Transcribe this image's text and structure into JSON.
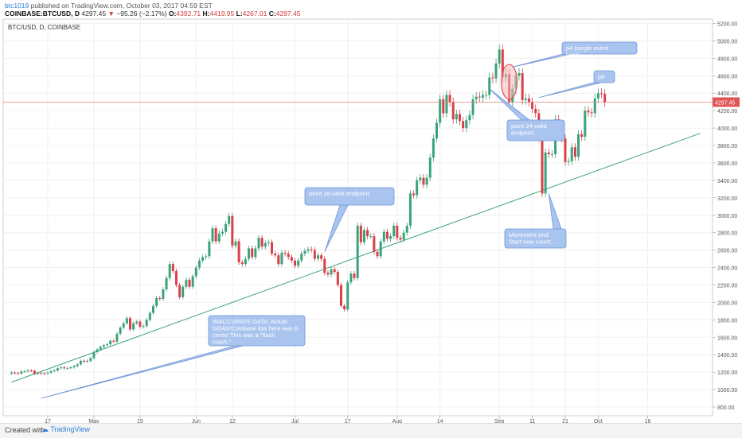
{
  "header": {
    "author": "btc1019",
    "published_text": " published on TradingView.com, October 03, 2017 04:59 EST",
    "symbol": "COINBASE:BTCUSD, D",
    "last": "4297.45",
    "change_arrow": "▼",
    "change": "−95.26 (−2.17%)",
    "o_label": "O:",
    "o_value": "4392.71",
    "h_label": "H:",
    "h_value": "4419.95",
    "l_label": "L:",
    "l_value": "4267.01",
    "c_label": "C:",
    "c_value": "4297.45"
  },
  "chart_title": "BTC/USD, D, COINBASE",
  "footer": {
    "created_with": "Created with",
    "brand": "TradingView"
  },
  "colors": {
    "up": "#3aa37a",
    "down": "#d9404a",
    "trendline": "#3aa37a",
    "callout_fill": "#a9c4ef",
    "callout_stroke": "#6f95d6",
    "callout_text": "#ffffff",
    "price_line": "#e87b7b",
    "price_tag": "#e05656"
  },
  "chart_data": {
    "type": "candlestick",
    "title": "BTC/USD, D, COINBASE",
    "y_ticks": [
      "800.00",
      "1000.00",
      "1200.00",
      "1400.00",
      "1600.00",
      "1800.00",
      "2000.00",
      "2200.00",
      "2400.00",
      "2600.00",
      "2800.00",
      "3000.00",
      "3200.00",
      "3400.00",
      "3600.00",
      "3800.00",
      "4000.00",
      "4200.00",
      "4400.00",
      "4600.00",
      "4800.00",
      "5000.00",
      "5200.00"
    ],
    "y_range": [
      700,
      5250
    ],
    "x_ticks": [
      {
        "label": "17",
        "date": "2017-04-17"
      },
      {
        "label": "May",
        "date": "2017-05-01"
      },
      {
        "label": "15",
        "date": "2017-05-15"
      },
      {
        "label": "Jun",
        "date": "2017-06-01"
      },
      {
        "label": "12",
        "date": "2017-06-12"
      },
      {
        "label": "Jul",
        "date": "2017-07-01"
      },
      {
        "label": "17",
        "date": "2017-07-17"
      },
      {
        "label": "Aug",
        "date": "2017-08-01"
      },
      {
        "label": "14",
        "date": "2017-08-14"
      },
      {
        "label": "Sep",
        "date": "2017-09-01"
      },
      {
        "label": "11",
        "date": "2017-09-11"
      },
      {
        "label": "21",
        "date": "2017-09-21"
      },
      {
        "label": "Oct",
        "date": "2017-10-01"
      },
      {
        "label": "16",
        "date": "2017-10-16"
      }
    ],
    "current_price_label": "4297.45",
    "candles": [
      {
        "d": "2017-04-06",
        "c": 1195
      },
      {
        "d": "2017-04-07",
        "c": 1190
      },
      {
        "d": "2017-04-08",
        "c": 1183
      },
      {
        "d": "2017-04-09",
        "c": 1208
      },
      {
        "d": "2017-04-10",
        "c": 1210
      },
      {
        "d": "2017-04-11",
        "c": 1220
      },
      {
        "d": "2017-04-12",
        "c": 1215
      },
      {
        "d": "2017-04-13",
        "c": 1182
      },
      {
        "d": "2017-04-14",
        "c": 1190
      },
      {
        "d": "2017-04-15",
        "c": 1186
      },
      {
        "d": "2017-04-16",
        "c": 1185
      },
      {
        "d": "2017-04-17",
        "c": 1195
      },
      {
        "d": "2017-04-18",
        "c": 1212
      },
      {
        "d": "2017-04-19",
        "c": 1220
      },
      {
        "d": "2017-04-20",
        "c": 1245
      },
      {
        "d": "2017-04-21",
        "c": 1255
      },
      {
        "d": "2017-04-22",
        "c": 1245
      },
      {
        "d": "2017-04-23",
        "c": 1248
      },
      {
        "d": "2017-04-24",
        "c": 1255
      },
      {
        "d": "2017-04-25",
        "c": 1270
      },
      {
        "d": "2017-04-26",
        "c": 1290
      },
      {
        "d": "2017-04-27",
        "c": 1330
      },
      {
        "d": "2017-04-28",
        "c": 1320
      },
      {
        "d": "2017-04-29",
        "c": 1330
      },
      {
        "d": "2017-04-30",
        "c": 1360
      },
      {
        "d": "2017-05-01",
        "c": 1430
      },
      {
        "d": "2017-05-02",
        "c": 1460
      },
      {
        "d": "2017-05-03",
        "c": 1490
      },
      {
        "d": "2017-05-04",
        "c": 1510
      },
      {
        "d": "2017-05-05",
        "c": 1520
      },
      {
        "d": "2017-05-06",
        "c": 1560
      },
      {
        "d": "2017-05-07",
        "c": 1550
      },
      {
        "d": "2017-05-08",
        "c": 1640
      },
      {
        "d": "2017-05-09",
        "c": 1710
      },
      {
        "d": "2017-05-10",
        "c": 1760
      },
      {
        "d": "2017-05-11",
        "c": 1820
      },
      {
        "d": "2017-05-12",
        "c": 1690
      },
      {
        "d": "2017-05-13",
        "c": 1760
      },
      {
        "d": "2017-05-14",
        "c": 1780
      },
      {
        "d": "2017-05-15",
        "c": 1720
      },
      {
        "d": "2017-05-16",
        "c": 1730
      },
      {
        "d": "2017-05-17",
        "c": 1800
      },
      {
        "d": "2017-05-18",
        "c": 1880
      },
      {
        "d": "2017-05-19",
        "c": 1960
      },
      {
        "d": "2017-05-20",
        "c": 2050
      },
      {
        "d": "2017-05-21",
        "c": 2040
      },
      {
        "d": "2017-05-22",
        "c": 2150
      },
      {
        "d": "2017-05-23",
        "c": 2280
      },
      {
        "d": "2017-05-24",
        "c": 2440
      },
      {
        "d": "2017-05-25",
        "c": 2360
      },
      {
        "d": "2017-05-26",
        "c": 2200
      },
      {
        "d": "2017-05-27",
        "c": 2060
      },
      {
        "d": "2017-05-28",
        "c": 2180
      },
      {
        "d": "2017-05-29",
        "c": 2260
      },
      {
        "d": "2017-05-30",
        "c": 2180
      },
      {
        "d": "2017-05-31",
        "c": 2300
      },
      {
        "d": "2017-06-01",
        "c": 2400
      },
      {
        "d": "2017-06-02",
        "c": 2480
      },
      {
        "d": "2017-06-03",
        "c": 2520
      },
      {
        "d": "2017-06-04",
        "c": 2530
      },
      {
        "d": "2017-06-05",
        "c": 2700
      },
      {
        "d": "2017-06-06",
        "c": 2850
      },
      {
        "d": "2017-06-07",
        "c": 2700
      },
      {
        "d": "2017-06-08",
        "c": 2790
      },
      {
        "d": "2017-06-09",
        "c": 2810
      },
      {
        "d": "2017-06-10",
        "c": 2900
      },
      {
        "d": "2017-06-11",
        "c": 2990
      },
      {
        "d": "2017-06-12",
        "c": 2650
      },
      {
        "d": "2017-06-13",
        "c": 2700
      },
      {
        "d": "2017-06-14",
        "c": 2460
      },
      {
        "d": "2017-06-15",
        "c": 2440
      },
      {
        "d": "2017-06-16",
        "c": 2500
      },
      {
        "d": "2017-06-17",
        "c": 2620
      },
      {
        "d": "2017-06-18",
        "c": 2520
      },
      {
        "d": "2017-06-19",
        "c": 2620
      },
      {
        "d": "2017-06-20",
        "c": 2740
      },
      {
        "d": "2017-06-21",
        "c": 2640
      },
      {
        "d": "2017-06-22",
        "c": 2680
      },
      {
        "d": "2017-06-23",
        "c": 2690
      },
      {
        "d": "2017-06-24",
        "c": 2560
      },
      {
        "d": "2017-06-25",
        "c": 2540
      },
      {
        "d": "2017-06-26",
        "c": 2440
      },
      {
        "d": "2017-06-27",
        "c": 2570
      },
      {
        "d": "2017-06-28",
        "c": 2560
      },
      {
        "d": "2017-06-29",
        "c": 2520
      },
      {
        "d": "2017-06-30",
        "c": 2480
      },
      {
        "d": "2017-07-01",
        "c": 2420
      },
      {
        "d": "2017-07-02",
        "c": 2480
      },
      {
        "d": "2017-07-03",
        "c": 2560
      },
      {
        "d": "2017-07-04",
        "c": 2590
      },
      {
        "d": "2017-07-05",
        "c": 2610
      },
      {
        "d": "2017-07-06",
        "c": 2600
      },
      {
        "d": "2017-07-07",
        "c": 2500
      },
      {
        "d": "2017-07-08",
        "c": 2540
      },
      {
        "d": "2017-07-09",
        "c": 2500
      },
      {
        "d": "2017-07-10",
        "c": 2340
      },
      {
        "d": "2017-07-11",
        "c": 2320
      },
      {
        "d": "2017-07-12",
        "c": 2380
      },
      {
        "d": "2017-07-13",
        "c": 2350
      },
      {
        "d": "2017-07-14",
        "c": 2200
      },
      {
        "d": "2017-07-15",
        "c": 1960
      },
      {
        "d": "2017-07-16",
        "c": 1920
      },
      {
        "d": "2017-07-17",
        "c": 2230
      },
      {
        "d": "2017-07-18",
        "c": 2330
      },
      {
        "d": "2017-07-19",
        "c": 2280
      },
      {
        "d": "2017-07-20",
        "c": 2880
      },
      {
        "d": "2017-07-21",
        "c": 2690
      },
      {
        "d": "2017-07-22",
        "c": 2830
      },
      {
        "d": "2017-07-23",
        "c": 2760
      },
      {
        "d": "2017-07-24",
        "c": 2760
      },
      {
        "d": "2017-07-25",
        "c": 2580
      },
      {
        "d": "2017-07-26",
        "c": 2530
      },
      {
        "d": "2017-07-27",
        "c": 2700
      },
      {
        "d": "2017-07-28",
        "c": 2810
      },
      {
        "d": "2017-07-29",
        "c": 2730
      },
      {
        "d": "2017-07-30",
        "c": 2760
      },
      {
        "d": "2017-07-31",
        "c": 2880
      },
      {
        "d": "2017-08-01",
        "c": 2740
      },
      {
        "d": "2017-08-02",
        "c": 2720
      },
      {
        "d": "2017-08-03",
        "c": 2800
      },
      {
        "d": "2017-08-04",
        "c": 2880
      },
      {
        "d": "2017-08-05",
        "c": 3250
      },
      {
        "d": "2017-08-06",
        "c": 3230
      },
      {
        "d": "2017-08-07",
        "c": 3400
      },
      {
        "d": "2017-08-08",
        "c": 3430
      },
      {
        "d": "2017-08-09",
        "c": 3350
      },
      {
        "d": "2017-08-10",
        "c": 3430
      },
      {
        "d": "2017-08-11",
        "c": 3660
      },
      {
        "d": "2017-08-12",
        "c": 3880
      },
      {
        "d": "2017-08-13",
        "c": 4060
      },
      {
        "d": "2017-08-14",
        "c": 4330
      },
      {
        "d": "2017-08-15",
        "c": 4170
      },
      {
        "d": "2017-08-16",
        "c": 4380
      },
      {
        "d": "2017-08-17",
        "c": 4300
      },
      {
        "d": "2017-08-18",
        "c": 4100
      },
      {
        "d": "2017-08-19",
        "c": 4160
      },
      {
        "d": "2017-08-20",
        "c": 4080
      },
      {
        "d": "2017-08-21",
        "c": 4000
      },
      {
        "d": "2017-08-22",
        "c": 4090
      },
      {
        "d": "2017-08-23",
        "c": 4150
      },
      {
        "d": "2017-08-24",
        "c": 4330
      },
      {
        "d": "2017-08-25",
        "c": 4360
      },
      {
        "d": "2017-08-26",
        "c": 4350
      },
      {
        "d": "2017-08-27",
        "c": 4380
      },
      {
        "d": "2017-08-28",
        "c": 4380
      },
      {
        "d": "2017-08-29",
        "c": 4580
      },
      {
        "d": "2017-08-30",
        "c": 4570
      },
      {
        "d": "2017-08-31",
        "c": 4740
      },
      {
        "d": "2017-09-01",
        "c": 4900
      },
      {
        "d": "2017-09-02",
        "c": 4580
      },
      {
        "d": "2017-09-03",
        "c": 4620
      },
      {
        "d": "2017-09-04",
        "c": 4300
      },
      {
        "d": "2017-09-05",
        "c": 4450
      },
      {
        "d": "2017-09-06",
        "c": 4600
      },
      {
        "d": "2017-09-07",
        "c": 4630
      },
      {
        "d": "2017-09-08",
        "c": 4320
      },
      {
        "d": "2017-09-09",
        "c": 4340
      },
      {
        "d": "2017-09-10",
        "c": 4300
      },
      {
        "d": "2017-09-11",
        "c": 4220
      },
      {
        "d": "2017-09-12",
        "c": 4170
      },
      {
        "d": "2017-09-13",
        "c": 3890
      },
      {
        "d": "2017-09-14",
        "c": 3250
      },
      {
        "d": "2017-09-15",
        "c": 3720
      },
      {
        "d": "2017-09-16",
        "c": 3700
      },
      {
        "d": "2017-09-17",
        "c": 3700
      },
      {
        "d": "2017-09-18",
        "c": 4100
      },
      {
        "d": "2017-09-19",
        "c": 3910
      },
      {
        "d": "2017-09-20",
        "c": 3880
      },
      {
        "d": "2017-09-21",
        "c": 3610
      },
      {
        "d": "2017-09-22",
        "c": 3620
      },
      {
        "d": "2017-09-23",
        "c": 3780
      },
      {
        "d": "2017-09-24",
        "c": 3670
      },
      {
        "d": "2017-09-25",
        "c": 3930
      },
      {
        "d": "2017-09-26",
        "c": 3900
      },
      {
        "d": "2017-09-27",
        "c": 4200
      },
      {
        "d": "2017-09-28",
        "c": 4180
      },
      {
        "d": "2017-09-29",
        "c": 4170
      },
      {
        "d": "2017-09-30",
        "c": 4340
      },
      {
        "d": "2017-10-01",
        "c": 4400
      },
      {
        "d": "2017-10-02",
        "c": 4392.71
      },
      {
        "d": "2017-10-03",
        "c": 4297.45
      }
    ],
    "trendline": {
      "from": {
        "d": "2017-04-06",
        "p": 1085
      },
      "to": {
        "d": "2017-11-01",
        "p": 3940
      }
    },
    "current_price": 4297.45,
    "annotations": [
      {
        "text": "p4 (single event here)",
        "x": "2017-09-04",
        "y": 4900
      },
      {
        "text": "p8",
        "x": "2017-09-15",
        "y": 4600
      },
      {
        "text": "point 24-valid endpoint.",
        "x": "2017-09-04",
        "y": 4000
      },
      {
        "text": "point 16-valid endpoint.",
        "x": "2017-07-08",
        "y": 3380
      },
      {
        "text": "Movement end. Start new count.",
        "x": "2017-09-08",
        "y": 2700
      },
      {
        "text": "INACCURATE DATA: Actual GDAX/Coinbase low here was 6 cents! This was a \"flash crash.\"",
        "x": "2017-06-15",
        "y": 1550
      }
    ]
  }
}
